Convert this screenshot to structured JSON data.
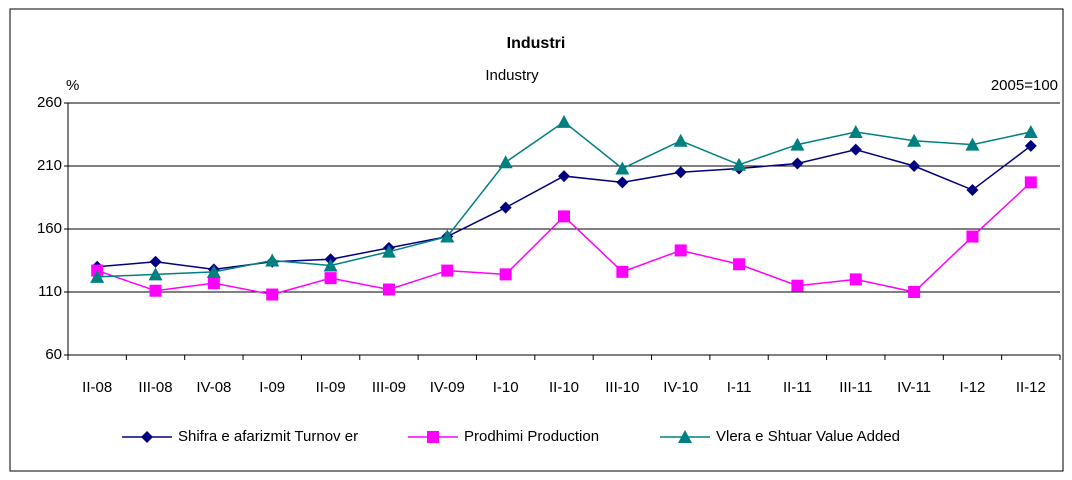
{
  "chart_data": {
    "type": "line",
    "title": "Industri",
    "subtitle": "Industry",
    "y_label": "%",
    "annotation": "2005=100",
    "categories": [
      "II-08",
      "III-08",
      "IV-08",
      "I-09",
      "II-09",
      "III-09",
      "IV-09",
      "I-10",
      "II-10",
      "III-10",
      "IV-10",
      "I-11",
      "II-11",
      "III-11",
      "IV-11",
      "I-12",
      "II-12"
    ],
    "series": [
      {
        "name": "Shifra e afarizmit Turnov er",
        "color": "#000080",
        "marker": "diamond",
        "values": [
          130,
          134,
          128,
          134,
          136,
          145,
          154,
          177,
          202,
          197,
          205,
          208,
          212,
          223,
          210,
          191,
          226
        ]
      },
      {
        "name": "Prodhimi Production",
        "color": "#ff00ff",
        "marker": "square",
        "values": [
          127,
          111,
          117,
          108,
          121,
          112,
          127,
          124,
          170,
          126,
          143,
          132,
          115,
          120,
          110,
          154,
          197
        ]
      },
      {
        "name": "Vlera e Shtuar Value Added",
        "color": "#008080",
        "marker": "triangle",
        "values": [
          122,
          124,
          126,
          135,
          131,
          142,
          154,
          213,
          245,
          208,
          230,
          211,
          227,
          237,
          230,
          227,
          237
        ]
      }
    ],
    "ylim": [
      60,
      260
    ],
    "yticks": [
      60,
      110,
      160,
      210,
      260
    ],
    "grid": true,
    "legend": "bottom"
  }
}
